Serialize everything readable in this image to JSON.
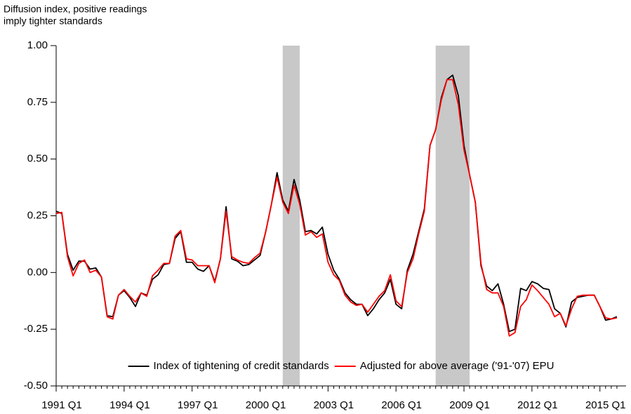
{
  "chart_data": {
    "type": "line",
    "y_label": [
      "Diffusion index, positive readings",
      "imply tighter standards"
    ],
    "categories": [
      "1991 Q1",
      null,
      null,
      null,
      null,
      null,
      null,
      null,
      null,
      null,
      null,
      null,
      "1994 Q1",
      null,
      null,
      null,
      null,
      null,
      null,
      null,
      null,
      null,
      null,
      null,
      "1997 Q1",
      null,
      null,
      null,
      null,
      null,
      null,
      null,
      null,
      null,
      null,
      null,
      "2000 Q1",
      null,
      null,
      null,
      null,
      null,
      null,
      null,
      null,
      null,
      null,
      null,
      "2003 Q1",
      null,
      null,
      null,
      null,
      null,
      null,
      null,
      null,
      null,
      null,
      null,
      "2006 Q1",
      null,
      null,
      null,
      null,
      null,
      null,
      null,
      null,
      null,
      null,
      null,
      "2009 Q1",
      null,
      null,
      null,
      null,
      null,
      null,
      null,
      null,
      null,
      null,
      null,
      "2012 Q1",
      null,
      null,
      null,
      null,
      null,
      null,
      null,
      null,
      null,
      null,
      null,
      "2015 Q1",
      null,
      null,
      null
    ],
    "series": [
      {
        "name": "Index of tightening of credit standards",
        "color": "#000000",
        "values": [
          0.27,
          0.26,
          0.08,
          0.01,
          0.05,
          0.05,
          0.015,
          0.02,
          -0.02,
          -0.19,
          -0.195,
          -0.1,
          -0.08,
          -0.11,
          -0.15,
          -0.09,
          -0.1,
          -0.03,
          -0.01,
          0.035,
          0.04,
          0.15,
          0.18,
          0.045,
          0.045,
          0.015,
          0.005,
          0.03,
          -0.04,
          0.06,
          0.29,
          0.06,
          0.05,
          0.03,
          0.035,
          0.055,
          0.075,
          0.18,
          0.3,
          0.44,
          0.32,
          0.27,
          0.41,
          0.32,
          0.18,
          0.185,
          0.17,
          0.2,
          0.08,
          0.01,
          -0.03,
          -0.09,
          -0.12,
          -0.14,
          -0.14,
          -0.19,
          -0.16,
          -0.12,
          -0.09,
          -0.03,
          -0.14,
          -0.16,
          0.01,
          0.08,
          0.18,
          0.28,
          0.56,
          0.63,
          0.77,
          0.85,
          0.87,
          0.78,
          0.56,
          0.43,
          0.31,
          0.03,
          -0.06,
          -0.08,
          -0.05,
          -0.14,
          -0.26,
          -0.25,
          -0.07,
          -0.08,
          -0.04,
          -0.05,
          -0.07,
          -0.075,
          -0.16,
          -0.18,
          -0.24,
          -0.13,
          -0.11,
          -0.105,
          -0.1,
          -0.1,
          -0.15,
          -0.21,
          -0.205,
          -0.195
        ]
      },
      {
        "name": "Adjusted for above average ('91-'07) EPU",
        "color": "#ff0000",
        "values": [
          0.26,
          0.265,
          0.07,
          -0.015,
          0.04,
          0.055,
          0.0,
          0.01,
          -0.02,
          -0.195,
          -0.205,
          -0.1,
          -0.075,
          -0.105,
          -0.13,
          -0.09,
          -0.105,
          -0.015,
          0.01,
          0.04,
          0.04,
          0.16,
          0.185,
          0.06,
          0.055,
          0.03,
          0.03,
          0.03,
          -0.045,
          0.06,
          0.27,
          0.07,
          0.055,
          0.045,
          0.04,
          0.065,
          0.085,
          0.18,
          0.3,
          0.42,
          0.31,
          0.26,
          0.385,
          0.3,
          0.165,
          0.18,
          0.155,
          0.17,
          0.045,
          -0.01,
          -0.035,
          -0.1,
          -0.13,
          -0.145,
          -0.14,
          -0.175,
          -0.14,
          -0.105,
          -0.08,
          -0.01,
          -0.125,
          -0.15,
          0.0,
          0.06,
          0.17,
          0.27,
          0.56,
          0.63,
          0.76,
          0.85,
          0.85,
          0.74,
          0.54,
          0.43,
          0.31,
          0.04,
          -0.075,
          -0.09,
          -0.09,
          -0.15,
          -0.28,
          -0.265,
          -0.15,
          -0.12,
          -0.055,
          -0.08,
          -0.11,
          -0.14,
          -0.195,
          -0.18,
          -0.235,
          -0.16,
          -0.105,
          -0.1,
          -0.1,
          -0.1,
          -0.15,
          -0.2,
          -0.205,
          -0.2
        ]
      }
    ],
    "shaded": [
      [
        40,
        43
      ],
      [
        67,
        73
      ]
    ],
    "shade_color": "#c8c8c8",
    "ylim": [
      -0.5,
      1.0
    ],
    "yticks": [
      {
        "value": -0.5,
        "label": "-0.50"
      },
      {
        "value": -0.25,
        "label": "-0.25"
      },
      {
        "value": 0,
        "label": "0.00"
      },
      {
        "value": 0.25,
        "label": "0.25"
      },
      {
        "value": 0.5,
        "label": "0.50"
      },
      {
        "value": 0.75,
        "label": "0.75"
      },
      {
        "value": 1.0,
        "label": "1.00"
      }
    ],
    "grid": false,
    "legend": "lower center"
  }
}
